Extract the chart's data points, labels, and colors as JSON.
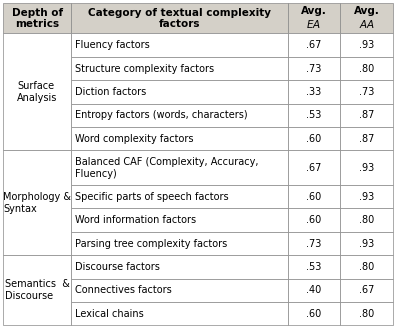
{
  "col_headers": [
    "Depth of\nmetrics",
    "Category of textual complexity\nfactors",
    "Avg.\nEA",
    "Avg.\nAA"
  ],
  "groups": [
    {
      "group_label": "Surface\nAnalysis",
      "rows": [
        [
          "Fluency factors",
          ".67",
          ".93"
        ],
        [
          "Structure complexity factors",
          ".73",
          ".80"
        ],
        [
          "Diction factors",
          ".33",
          ".73"
        ],
        [
          "Entropy factors (words, characters)",
          ".53",
          ".87"
        ],
        [
          "Word complexity factors",
          ".60",
          ".87"
        ]
      ]
    },
    {
      "group_label": "Morphology &\nSyntax",
      "rows": [
        [
          "Balanced CAF (Complexity, Accuracy,\nFluency)",
          ".67",
          ".93"
        ],
        [
          "Specific parts of speech factors",
          ".60",
          ".93"
        ],
        [
          "Word information factors",
          ".60",
          ".80"
        ],
        [
          "Parsing tree complexity factors",
          ".73",
          ".93"
        ]
      ]
    },
    {
      "group_label": "Semantics  &\nDiscourse",
      "rows": [
        [
          "Discourse factors",
          ".53",
          ".80"
        ],
        [
          "Connectives factors",
          ".40",
          ".67"
        ],
        [
          "Lexical chains",
          ".60",
          ".80"
        ]
      ]
    }
  ],
  "header_bg": "#d4d0c8",
  "body_bg": "#ffffff",
  "border_color": "#888888",
  "font_size": 7.0,
  "header_font_size": 7.5,
  "fig_width": 3.96,
  "fig_height": 3.27,
  "dpi": 100
}
